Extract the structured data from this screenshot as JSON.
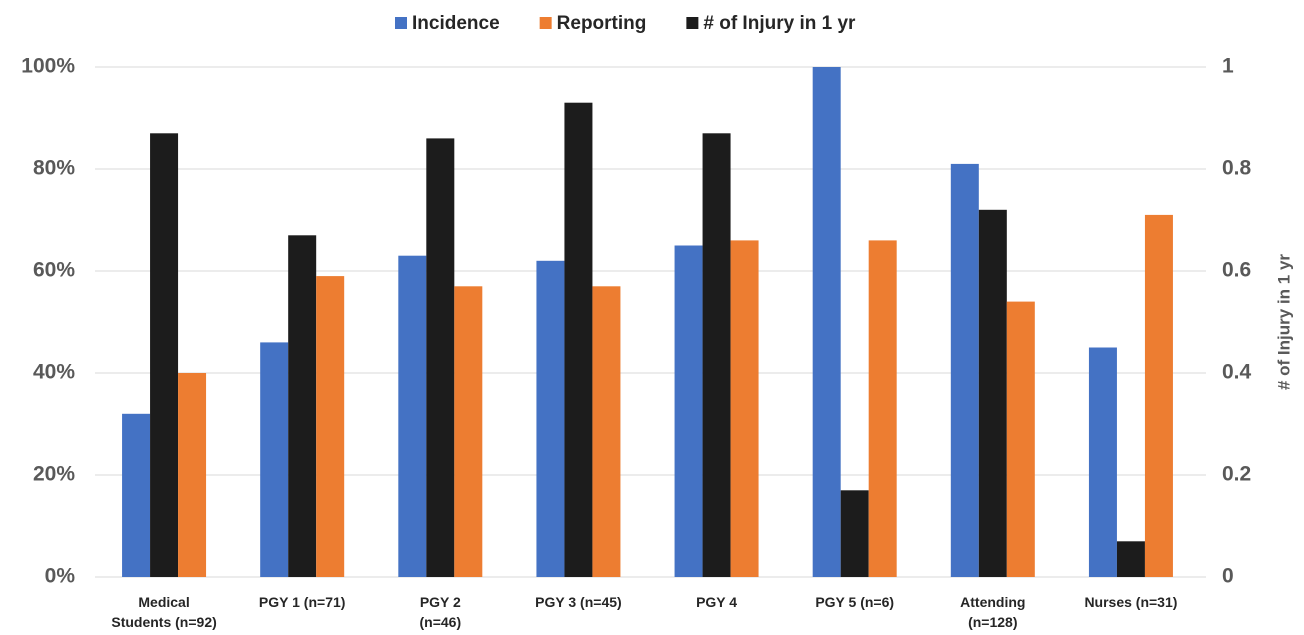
{
  "chart_data": {
    "type": "bar",
    "categories": [
      "Medical\nStudents  (n=92)",
      "PGY 1  (n=71)",
      "PGY 2\n(n=46)",
      "PGY 3 (n=45)",
      "PGY 4",
      "PGY 5 (n=6)",
      "Attending\n(n=128)",
      "Nurses (n=31)"
    ],
    "series": [
      {
        "name": "Incidence",
        "color": "#4472c4",
        "values": [
          32,
          46,
          63,
          62,
          65,
          100,
          81,
          45
        ]
      },
      {
        "name": "Reporting",
        "color": "#ed7d31",
        "values": [
          40,
          59,
          57,
          57,
          66,
          66,
          54,
          71
        ]
      },
      {
        "name": "# of Injury  in 1 yr",
        "color": "#1c1c1c",
        "axis": "y2",
        "values": [
          0.87,
          0.67,
          0.86,
          0.93,
          0.87,
          0.17,
          0.72,
          0.07
        ]
      }
    ],
    "ylim": [
      0,
      100
    ],
    "yticks": [
      {
        "value": 0,
        "label": "0%"
      },
      {
        "value": 20,
        "label": "20%"
      },
      {
        "value": 40,
        "label": "40%"
      },
      {
        "value": 60,
        "label": "60%"
      },
      {
        "value": 80,
        "label": "80%"
      },
      {
        "value": 100,
        "label": "100%"
      }
    ],
    "y2lim": [
      0,
      1
    ],
    "y2ticks": [
      0,
      0.2,
      0.4,
      0.6,
      0.8,
      1
    ],
    "y2label": "# of Injury in 1 yr",
    "grid": true,
    "legend": "top"
  }
}
